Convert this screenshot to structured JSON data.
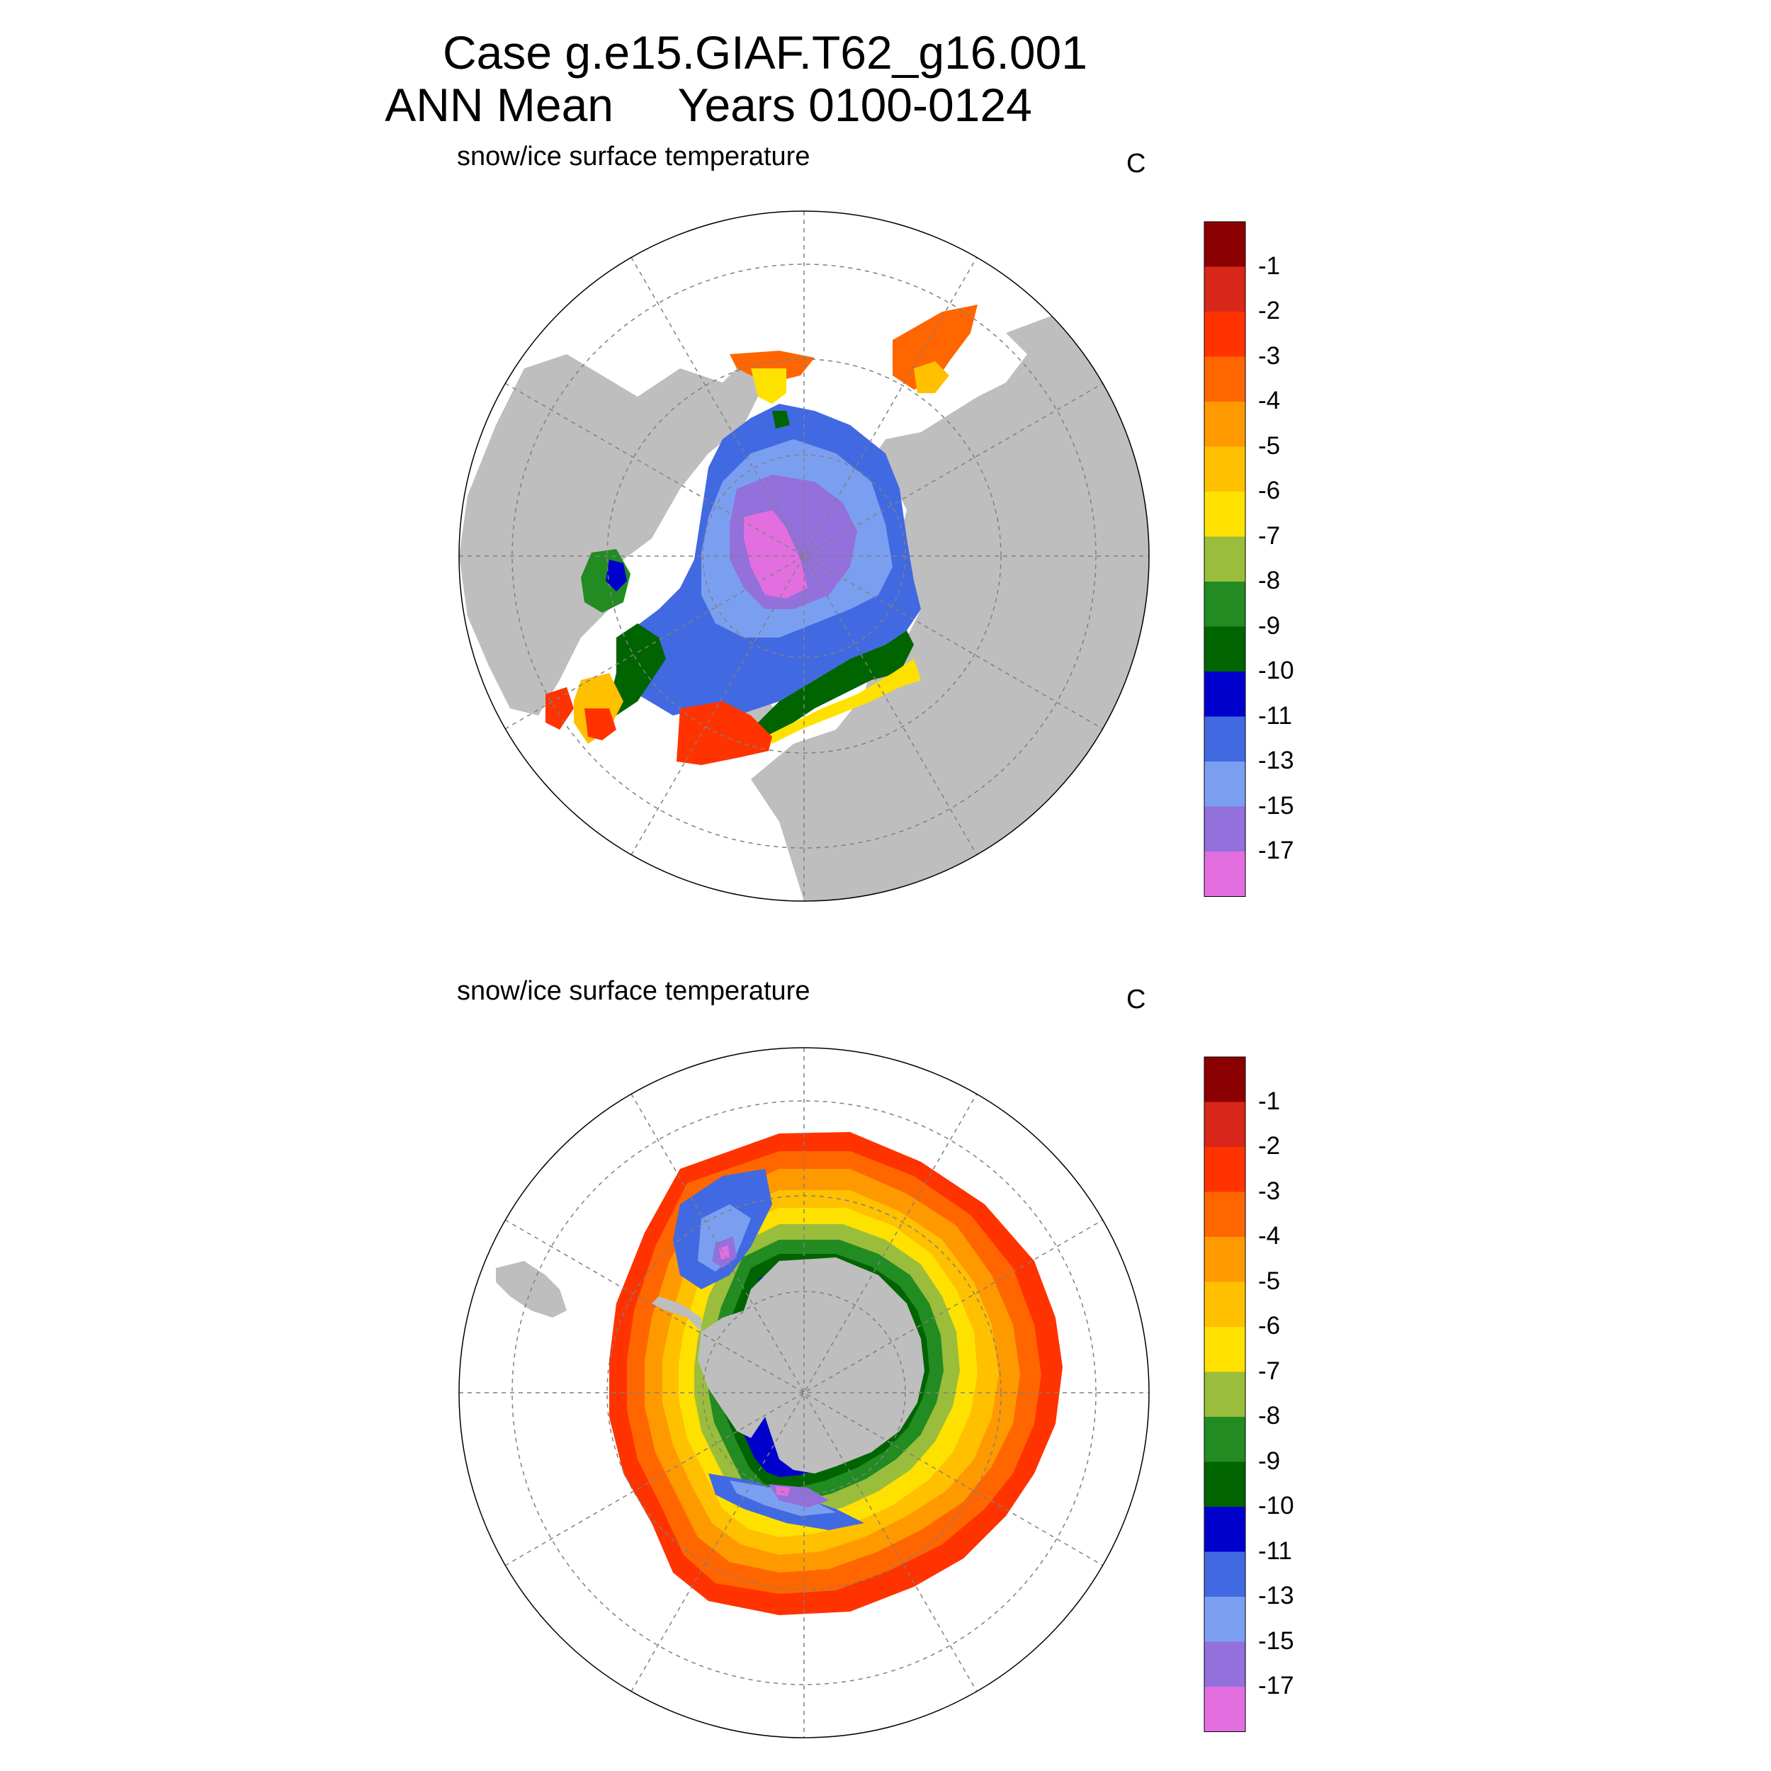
{
  "title": {
    "line1": "Case g.e15.GIAF.T62_g16.001",
    "line2": "ANN Mean     Years 0100-0124"
  },
  "panels": [
    {
      "id": "north",
      "variable": "snow/ice surface temperature",
      "units": "C",
      "hemisphere": "Northern Hemisphere"
    },
    {
      "id": "south",
      "variable": "snow/ice surface temperature",
      "units": "C",
      "hemisphere": "Southern Hemisphere"
    }
  ],
  "colorbar": {
    "labels": [
      "-1",
      "-2",
      "-3",
      "-4",
      "-5",
      "-6",
      "-7",
      "-8",
      "-9",
      "-10",
      "-11",
      "-13",
      "-15",
      "-17"
    ],
    "colors": [
      "#8b0000",
      "#d8261a",
      "#ff3300",
      "#ff6600",
      "#ff9900",
      "#ffc000",
      "#ffe100",
      "#9abd3c",
      "#228b22",
      "#006400",
      "#0000cd",
      "#4169e1",
      "#7b9ff0",
      "#9370db",
      "#e26ee0"
    ]
  },
  "colors": {
    "land": "#bebebe",
    "ocean": "#ffffff",
    "grid": "#808080"
  }
}
